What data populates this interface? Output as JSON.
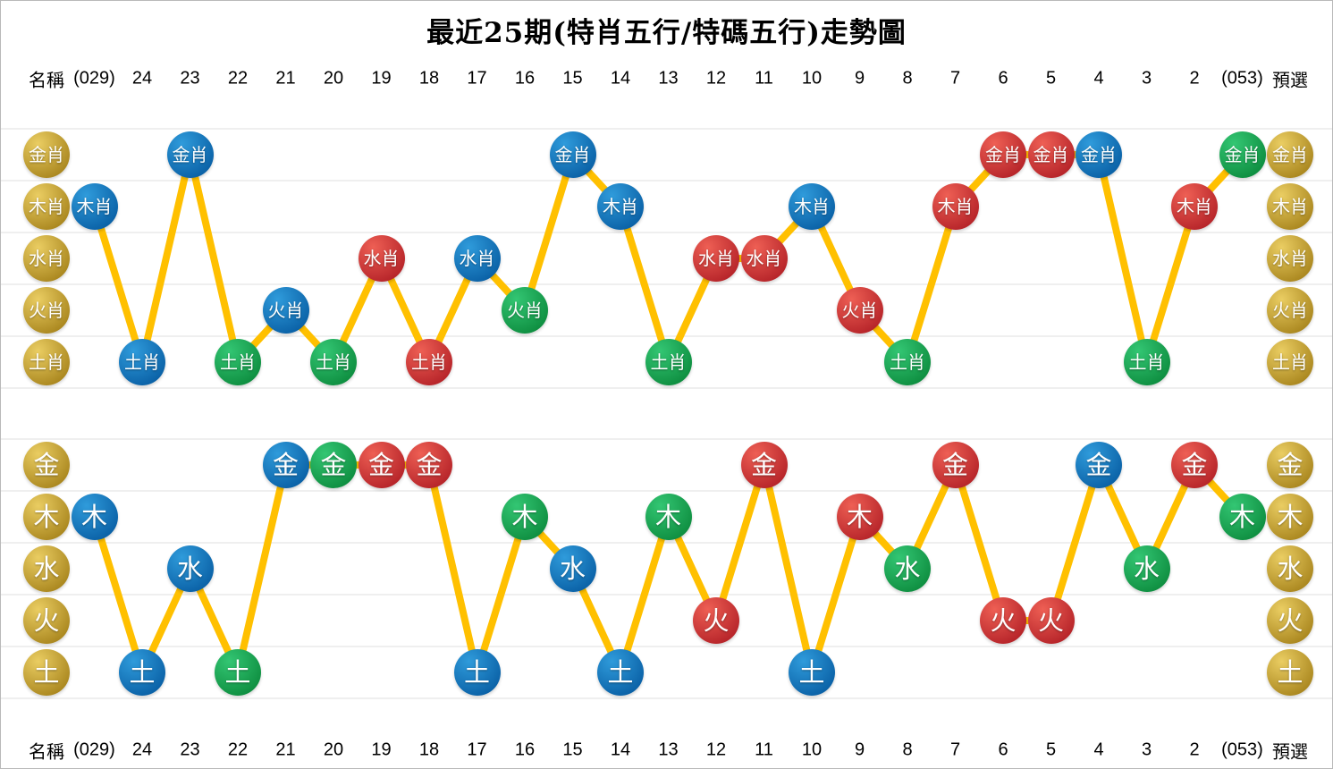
{
  "title": "最近25期(特肖五行/特碼五行)走勢圖",
  "columns": [
    "名稱",
    "(029)",
    "24",
    "23",
    "22",
    "21",
    "20",
    "19",
    "18",
    "17",
    "16",
    "15",
    "14",
    "13",
    "12",
    "11",
    "10",
    "9",
    "8",
    "7",
    "6",
    "5",
    "4",
    "3",
    "2",
    "(053)",
    "預選"
  ],
  "colors": {
    "point_blue_light": "#2f9bdb",
    "point_blue_dark": "#0b62a7",
    "point_red_light": "#ee5f54",
    "point_red_dark": "#b7252a",
    "point_green_light": "#33c673",
    "point_green_dark": "#0f8f41",
    "axis_gold_light": "#eacd62",
    "axis_gold_dark": "#ab8820",
    "trend_line": "#ffc000",
    "gridline": "#efefef",
    "header_text": "#000000",
    "background": "#ffffff"
  },
  "chart_data": [
    {
      "type": "line",
      "name": "special-zodiac-five-elements",
      "title": "特肖五行",
      "legend_position": "none",
      "grid": "horizontal",
      "rows": [
        "金肖",
        "木肖",
        "水肖",
        "火肖",
        "土肖"
      ],
      "categories": [
        "(029)",
        "24",
        "23",
        "22",
        "21",
        "20",
        "19",
        "18",
        "17",
        "16",
        "15",
        "14",
        "13",
        "12",
        "11",
        "10",
        "9",
        "8",
        "7",
        "6",
        "5",
        "4",
        "3",
        "2",
        "(053)"
      ],
      "values": [
        "木肖",
        "土肖",
        "金肖",
        "土肖",
        "火肖",
        "土肖",
        "水肖",
        "土肖",
        "水肖",
        "火肖",
        "金肖",
        "木肖",
        "土肖",
        "水肖",
        "水肖",
        "木肖",
        "火肖",
        "土肖",
        "木肖",
        "金肖",
        "金肖",
        "金肖",
        "土肖",
        "木肖",
        "金肖"
      ],
      "point_colors": [
        "blue",
        "blue",
        "blue",
        "green",
        "blue",
        "green",
        "red",
        "red",
        "blue",
        "green",
        "blue",
        "blue",
        "green",
        "red",
        "red",
        "blue",
        "red",
        "green",
        "red",
        "red",
        "red",
        "blue",
        "green",
        "red",
        "green"
      ]
    },
    {
      "type": "line",
      "name": "special-code-five-elements",
      "title": "特碼五行",
      "legend_position": "none",
      "grid": "horizontal",
      "rows": [
        "金",
        "木",
        "水",
        "火",
        "土"
      ],
      "categories": [
        "(029)",
        "24",
        "23",
        "22",
        "21",
        "20",
        "19",
        "18",
        "17",
        "16",
        "15",
        "14",
        "13",
        "12",
        "11",
        "10",
        "9",
        "8",
        "7",
        "6",
        "5",
        "4",
        "3",
        "2",
        "(053)"
      ],
      "values": [
        "木",
        "土",
        "水",
        "土",
        "金",
        "金",
        "金",
        "金",
        "土",
        "木",
        "水",
        "土",
        "木",
        "火",
        "金",
        "土",
        "木",
        "水",
        "金",
        "火",
        "火",
        "金",
        "水",
        "金",
        "木"
      ],
      "point_colors": [
        "blue",
        "blue",
        "blue",
        "green",
        "blue",
        "green",
        "red",
        "red",
        "blue",
        "green",
        "blue",
        "blue",
        "green",
        "red",
        "red",
        "blue",
        "red",
        "green",
        "red",
        "red",
        "red",
        "blue",
        "green",
        "red",
        "green"
      ]
    }
  ]
}
